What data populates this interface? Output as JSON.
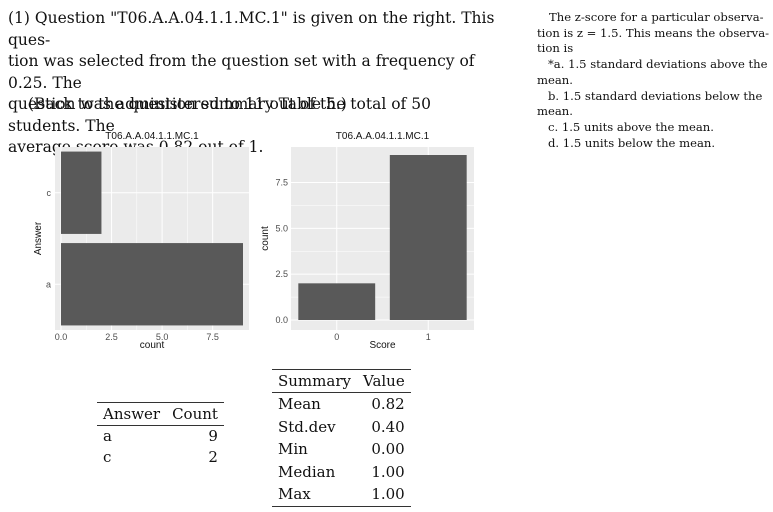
{
  "intro": {
    "question_id": "T06.A.A.04.1.1.MC.1",
    "lines": [
      "(1) Question \"T06.A.A.04.1.1.MC.1\" is given on the right. This ques-",
      "tion was selected from the question set with a frequency of 0.25. The",
      "question was administered to 11 out of the total of 50 students. The",
      "average score was 0.82 out of 1."
    ],
    "back_link": "(Back to the question summary Table 5.)"
  },
  "question": {
    "stem_lines": [
      "The z-score for a particular observa-",
      "tion is z = 1.5. This means the observa-",
      "tion is"
    ],
    "options": [
      {
        "label_lines": [
          "*a. 1.5 standard deviations above the",
          "mean."
        ]
      },
      {
        "label_lines": [
          "b. 1.5 standard deviations below the",
          "mean."
        ]
      },
      {
        "label_lines": [
          "c. 1.5 units above the mean."
        ]
      },
      {
        "label_lines": [
          "d. 1.5 units below the mean."
        ]
      }
    ]
  },
  "chart_data": [
    {
      "type": "bar",
      "orientation": "horizontal",
      "title": "T06.A.A.04.1.1.MC.1",
      "categories": [
        "a",
        "c"
      ],
      "values": [
        9,
        2
      ],
      "xlabel": "count",
      "ylabel": "Answer",
      "xticks": [
        "0.0",
        "2.5",
        "5.0",
        "7.5"
      ],
      "xlim": [
        0,
        9
      ],
      "grid": true,
      "bar_color": "#595959",
      "panel_color": "#ebebeb"
    },
    {
      "type": "bar",
      "orientation": "vertical",
      "title": "T06.A.A.04.1.1.MC.1",
      "categories": [
        "0",
        "1"
      ],
      "values": [
        2,
        9
      ],
      "xlabel": "Score",
      "ylabel": "count",
      "yticks": [
        "0.0",
        "2.5",
        "5.0",
        "7.5"
      ],
      "ylim": [
        0,
        9
      ],
      "grid": true,
      "bar_color": "#595959",
      "panel_color": "#ebebeb"
    }
  ],
  "count_table": {
    "headers": [
      "Answer",
      "Count"
    ],
    "rows": [
      [
        "a",
        "9"
      ],
      [
        "c",
        "2"
      ]
    ]
  },
  "summary_table": {
    "headers": [
      "Summary",
      "Value"
    ],
    "rows": [
      [
        "Mean",
        "0.82"
      ],
      [
        "Std.dev",
        "0.40"
      ],
      [
        "Min",
        "0.00"
      ],
      [
        "Median",
        "1.00"
      ],
      [
        "Max",
        "1.00"
      ]
    ]
  }
}
